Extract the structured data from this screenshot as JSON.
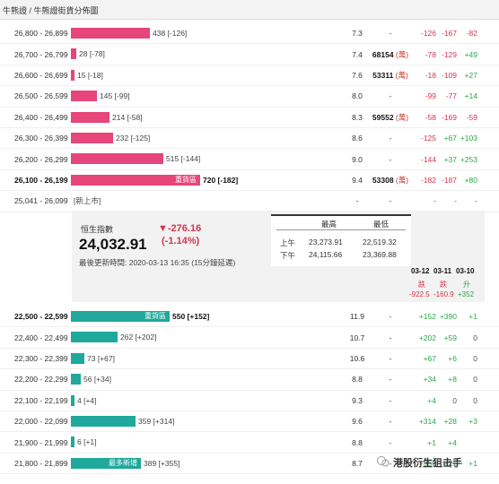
{
  "breadcrumb": "牛熊證 / 牛熊證街貨分佈圖",
  "bull_rows": [
    {
      "range": "26,800 - 26,899",
      "count": "438 [-126]",
      "fill": 0.43,
      "level": "7.3",
      "vol": "-",
      "tag": "",
      "c1": "-126",
      "c2": "-167",
      "c3": "-82",
      "bold": false,
      "label": ""
    },
    {
      "range": "26,700 - 26,799",
      "count": "28 [-78]",
      "fill": 0.028,
      "level": "7.4",
      "vol": "68154",
      "tag": "(萬)",
      "c1": "-78",
      "c2": "-129",
      "c3": "+49",
      "bold": false,
      "label": ""
    },
    {
      "range": "26,600 - 26,699",
      "count": "15 [-18]",
      "fill": 0.015,
      "level": "7.6",
      "vol": "53311",
      "tag": "(萬)",
      "c1": "-18",
      "c2": "-109",
      "c3": "+27",
      "bold": false,
      "label": ""
    },
    {
      "range": "26,500 - 26,599",
      "count": "145 [-99]",
      "fill": 0.142,
      "level": "8.0",
      "vol": "-",
      "tag": "",
      "c1": "-99",
      "c2": "-77",
      "c3": "+14",
      "bold": false,
      "label": ""
    },
    {
      "range": "26,400 - 26,499",
      "count": "214 [-58]",
      "fill": 0.21,
      "level": "8.3",
      "vol": "59552",
      "tag": "(萬)",
      "c1": "-58",
      "c2": "-169",
      "c3": "-59",
      "bold": false,
      "label": ""
    },
    {
      "range": "26,300 - 26,399",
      "count": "232 [-125]",
      "fill": 0.228,
      "level": "8.6",
      "vol": "-",
      "tag": "",
      "c1": "-125",
      "c2": "+67",
      "c3": "+103",
      "bold": false,
      "label": ""
    },
    {
      "range": "26,200 - 26,299",
      "count": "515 [-144]",
      "fill": 0.505,
      "level": "9.0",
      "vol": "-",
      "tag": "",
      "c1": "-144",
      "c2": "+37",
      "c3": "+253",
      "bold": false,
      "label": ""
    },
    {
      "range": "26,100 - 26,199",
      "count": "720 [-182]",
      "fill": 0.706,
      "level": "9.4",
      "vol": "53308",
      "tag": "(萬)",
      "c1": "-182",
      "c2": "-187",
      "c3": "+80",
      "bold": true,
      "label": "重貨區"
    },
    {
      "range": "25,041 - 26,099",
      "count": "[新上市]",
      "fill": 0,
      "level": "-",
      "vol": "-",
      "tag": "",
      "c1": "-",
      "c2": "-",
      "c3": "-",
      "bold": false,
      "label": ""
    }
  ],
  "bear_rows": [
    {
      "range": "22,500 - 22,599",
      "count": "550 [+152]",
      "fill": 0.539,
      "level": "11.9",
      "vol": "-",
      "tag": "",
      "c1": "+152",
      "c2": "+390",
      "c3": "+1",
      "bold": true,
      "label": "重貨區"
    },
    {
      "range": "22,400 - 22,499",
      "count": "262 [+202]",
      "fill": 0.257,
      "level": "10.7",
      "vol": "-",
      "tag": "",
      "c1": "+202",
      "c2": "+59",
      "c3": "0",
      "bold": false,
      "label": ""
    },
    {
      "range": "22,300 - 22,399",
      "count": "73 [+67]",
      "fill": 0.072,
      "level": "10.6",
      "vol": "-",
      "tag": "",
      "c1": "+67",
      "c2": "+6",
      "c3": "0",
      "bold": false,
      "label": ""
    },
    {
      "range": "22,200 - 22,299",
      "count": "56 [+34]",
      "fill": 0.055,
      "level": "8.8",
      "vol": "-",
      "tag": "",
      "c1": "+34",
      "c2": "+8",
      "c3": "0",
      "bold": false,
      "label": ""
    },
    {
      "range": "22,100 - 22,199",
      "count": "4 [+4]",
      "fill": 0.004,
      "level": "9.3",
      "vol": "-",
      "tag": "",
      "c1": "+4",
      "c2": "0",
      "c3": "0",
      "bold": false,
      "label": ""
    },
    {
      "range": "22,000 - 22,099",
      "count": "359 [+314]",
      "fill": 0.352,
      "level": "9.6",
      "vol": "-",
      "tag": "",
      "c1": "+314",
      "c2": "+28",
      "c3": "+3",
      "bold": false,
      "label": ""
    },
    {
      "range": "21,900 - 21,999",
      "count": "6 [+1]",
      "fill": 0.006,
      "level": "8.8",
      "vol": "-",
      "tag": "",
      "c1": "+1",
      "c2": "+4",
      "c3": "",
      "bold": false,
      "label": ""
    },
    {
      "range": "21,800 - 21,899",
      "count": "389 [+355]",
      "fill": 0.381,
      "level": "8.7",
      "vol": "-",
      "tag": "",
      "c1": "+355",
      "c2": "+21",
      "c3": "+1",
      "bold": false,
      "label": "最多新增"
    }
  ],
  "hsi": {
    "label": "恒生指數",
    "value": "24,032.91",
    "change": "▼-276.16",
    "pct": "(-1.14%)",
    "updated": "最後更新時間: 2020-03-13 16:35 (15分鐘延遲)",
    "high_label": "最高",
    "low_label": "最低",
    "am_label": "上午",
    "pm_label": "下午",
    "am_high": "23,273.91",
    "am_low": "22,519.32",
    "pm_high": "24,115.66",
    "pm_low": "23,369.88"
  },
  "futures": {
    "dates": [
      "03-12",
      "03-11",
      "03-10"
    ],
    "trend": [
      "跌",
      "跌",
      "升"
    ],
    "changes": [
      "-922.5",
      "-160.9",
      "+352"
    ]
  },
  "watermark": "港股衍生狙击手",
  "colors": {
    "bull": "#e6467a",
    "bear": "#1fa89b",
    "neg": "#d6344e",
    "pos": "#2aa64a"
  }
}
